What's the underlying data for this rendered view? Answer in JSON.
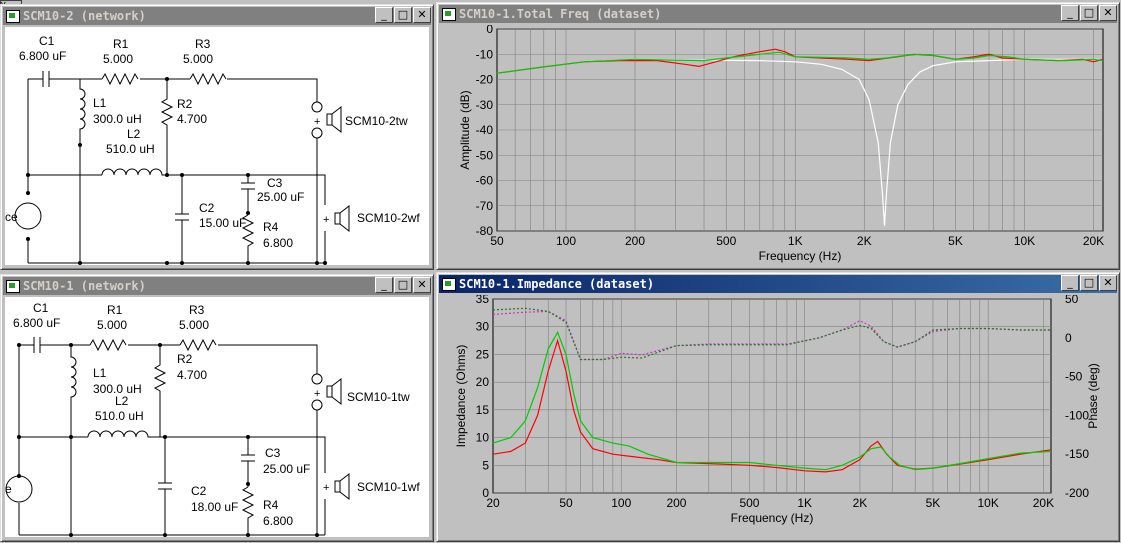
{
  "topleft": {
    "label": "y"
  },
  "windows": {
    "net2": {
      "title": "SCM10-2 (network)",
      "labels": {
        "c1": "C1",
        "c1v": "6.800 uF",
        "r1": "R1",
        "r1v": "5.000",
        "r3": "R3",
        "r3v": "5.000",
        "l1": "L1",
        "l1v": "300.0 uH",
        "r2": "R2",
        "r2v": "4.700",
        "l2": "L2",
        "l2v": "510.0 uH",
        "c2": "C2",
        "c2v": "15.00 uF",
        "c3": "C3",
        "c3v": "25.00 uF",
        "r4": "R4",
        "r4v": "6.800",
        "tw": "SCM10-2tw",
        "wf": "SCM10-2wf",
        "src": "ce"
      }
    },
    "net1": {
      "title": "SCM10-1 (network)",
      "labels": {
        "c1": "C1",
        "c1v": "6.800 uF",
        "r1": "R1",
        "r1v": "5.000",
        "r3": "R3",
        "r3v": "5.000",
        "l1": "L1",
        "l1v": "300.0 uH",
        "r2": "R2",
        "r2v": "4.700",
        "l2": "L2",
        "l2v": "510.0 uH",
        "c2": "C2",
        "c2v": "18.00 uF",
        "c3": "C3",
        "c3v": "25.00 uF",
        "r4": "R4",
        "r4v": "6.800",
        "tw": "SCM10-1tw",
        "wf": "SCM10-1wf",
        "src": "e"
      }
    },
    "freq": {
      "title": "SCM10-1.Total Freq (dataset)"
    },
    "imp": {
      "title": "SCM10-1.Impedance (dataset)"
    }
  },
  "buttons": {
    "min": "_",
    "max": "□",
    "close": "✕"
  },
  "colors": {
    "red": "#ff0000",
    "green": "#00cc00",
    "white": "#ffffff",
    "plot_bg": "#c0c0c0",
    "grid": "#808080",
    "magenta": "#cc33cc",
    "darkgreen": "#207a20"
  },
  "chart_data": [
    {
      "type": "line",
      "xlabel": "Frequency (Hz)",
      "ylabel": "Amplitude (dB)",
      "x_scale": "log",
      "xlim": [
        50,
        22000
      ],
      "ylim": [
        -80,
        0
      ],
      "grid": true,
      "x_ticks": [
        {
          "v": 50,
          "t": "50"
        },
        {
          "v": 100,
          "t": "100"
        },
        {
          "v": 200,
          "t": "200"
        },
        {
          "v": 500,
          "t": "500"
        },
        {
          "v": 1000,
          "t": "1K"
        },
        {
          "v": 2000,
          "t": "2K"
        },
        {
          "v": 5000,
          "t": "5K"
        },
        {
          "v": 10000,
          "t": "10K"
        },
        {
          "v": 20000,
          "t": "20K"
        }
      ],
      "y_ticks": [
        {
          "v": 0,
          "t": "0"
        },
        {
          "v": -10,
          "t": "-10"
        },
        {
          "v": -20,
          "t": "-20"
        },
        {
          "v": -30,
          "t": "-30"
        },
        {
          "v": -40,
          "t": "-40"
        },
        {
          "v": -50,
          "t": "-50"
        },
        {
          "v": -60,
          "t": "-60"
        },
        {
          "v": -70,
          "t": "-70"
        },
        {
          "v": -80,
          "t": "-80"
        }
      ],
      "series": [
        {
          "color": "white",
          "points": [
            [
              50,
              -17.5
            ],
            [
              80,
              -15
            ],
            [
              120,
              -13
            ],
            [
              200,
              -12
            ],
            [
              400,
              -12.3
            ],
            [
              700,
              -12.5
            ],
            [
              1000,
              -13
            ],
            [
              1300,
              -14
            ],
            [
              1600,
              -16
            ],
            [
              1900,
              -20
            ],
            [
              2100,
              -28
            ],
            [
              2300,
              -45
            ],
            [
              2400,
              -65
            ],
            [
              2450,
              -78
            ],
            [
              2500,
              -65
            ],
            [
              2600,
              -45
            ],
            [
              2800,
              -30
            ],
            [
              3100,
              -22
            ],
            [
              3500,
              -17
            ],
            [
              4000,
              -14.5
            ],
            [
              5000,
              -13
            ],
            [
              7000,
              -12.5
            ],
            [
              10000,
              -12
            ],
            [
              15000,
              -12
            ],
            [
              21000,
              -12
            ]
          ]
        },
        {
          "color": "red",
          "points": [
            [
              50,
              -17.5
            ],
            [
              80,
              -15
            ],
            [
              120,
              -13
            ],
            [
              170,
              -12.5
            ],
            [
              250,
              -12.5
            ],
            [
              330,
              -14
            ],
            [
              380,
              -14.8
            ],
            [
              450,
              -13
            ],
            [
              550,
              -10.8
            ],
            [
              700,
              -9
            ],
            [
              820,
              -8
            ],
            [
              900,
              -9
            ],
            [
              1000,
              -11
            ],
            [
              1300,
              -11.5
            ],
            [
              1700,
              -12
            ],
            [
              2100,
              -12.5
            ],
            [
              2400,
              -11.8
            ],
            [
              2800,
              -11
            ],
            [
              3300,
              -10
            ],
            [
              4000,
              -10.5
            ],
            [
              5000,
              -12
            ],
            [
              6000,
              -11
            ],
            [
              7000,
              -10
            ],
            [
              8000,
              -11.5
            ],
            [
              10000,
              -12
            ],
            [
              14000,
              -12.5
            ],
            [
              18000,
              -12
            ],
            [
              20000,
              -13
            ],
            [
              22000,
              -12
            ]
          ]
        },
        {
          "color": "green",
          "points": [
            [
              50,
              -17.5
            ],
            [
              80,
              -15
            ],
            [
              120,
              -13
            ],
            [
              200,
              -12
            ],
            [
              300,
              -12.3
            ],
            [
              400,
              -12.5
            ],
            [
              500,
              -11.5
            ],
            [
              700,
              -10
            ],
            [
              850,
              -9.2
            ],
            [
              1000,
              -11
            ],
            [
              1300,
              -11.2
            ],
            [
              1700,
              -11.5
            ],
            [
              2100,
              -12
            ],
            [
              2500,
              -11.5
            ],
            [
              3000,
              -10.5
            ],
            [
              3500,
              -10
            ],
            [
              4000,
              -10.5
            ],
            [
              5000,
              -12
            ],
            [
              6000,
              -11.5
            ],
            [
              7000,
              -10.5
            ],
            [
              8500,
              -11
            ],
            [
              10000,
              -12
            ],
            [
              15000,
              -12.5
            ],
            [
              20000,
              -12
            ],
            [
              22000,
              -12.5
            ]
          ]
        }
      ]
    },
    {
      "type": "line",
      "xlabel": "Frequency (Hz)",
      "ylabel": "Impedance (Ohms)",
      "y2label": "Phase (deg)",
      "x_scale": "log",
      "xlim": [
        20,
        22000
      ],
      "ylim": [
        0,
        35
      ],
      "y2lim": [
        -200,
        50
      ],
      "grid": true,
      "x_ticks": [
        {
          "v": 20,
          "t": "20"
        },
        {
          "v": 50,
          "t": "50"
        },
        {
          "v": 100,
          "t": "100"
        },
        {
          "v": 200,
          "t": "200"
        },
        {
          "v": 500,
          "t": "500"
        },
        {
          "v": 1000,
          "t": "1K"
        },
        {
          "v": 2000,
          "t": "2K"
        },
        {
          "v": 5000,
          "t": "5K"
        },
        {
          "v": 10000,
          "t": "10K"
        },
        {
          "v": 20000,
          "t": "20K"
        }
      ],
      "y_ticks": [
        {
          "v": 35,
          "t": "35"
        },
        {
          "v": 30,
          "t": "30"
        },
        {
          "v": 25,
          "t": "25"
        },
        {
          "v": 20,
          "t": "20"
        },
        {
          "v": 15,
          "t": "15"
        },
        {
          "v": 10,
          "t": "10"
        },
        {
          "v": 5,
          "t": "5"
        },
        {
          "v": 0,
          "t": "0"
        }
      ],
      "y2_ticks": [
        {
          "v": 50,
          "t": "50"
        },
        {
          "v": 0,
          "t": "0"
        },
        {
          "v": -50,
          "t": "-50"
        },
        {
          "v": -100,
          "t": "-100"
        },
        {
          "v": -150,
          "t": "-150"
        },
        {
          "v": -200,
          "t": "-200"
        }
      ],
      "series": [
        {
          "color": "red",
          "axis": "left",
          "points": [
            [
              20,
              7
            ],
            [
              25,
              7.5
            ],
            [
              30,
              9
            ],
            [
              35,
              14
            ],
            [
              40,
              22
            ],
            [
              45,
              27.5
            ],
            [
              50,
              22
            ],
            [
              55,
              15
            ],
            [
              60,
              11
            ],
            [
              70,
              8
            ],
            [
              90,
              7
            ],
            [
              120,
              6.5
            ],
            [
              160,
              6
            ],
            [
              200,
              5.5
            ],
            [
              300,
              5.3
            ],
            [
              500,
              5
            ],
            [
              700,
              4.6
            ],
            [
              1000,
              4
            ],
            [
              1300,
              3.8
            ],
            [
              1600,
              4.2
            ],
            [
              2000,
              6
            ],
            [
              2300,
              8.5
            ],
            [
              2500,
              9.3
            ],
            [
              2800,
              7
            ],
            [
              3200,
              5
            ],
            [
              4000,
              4.3
            ],
            [
              5000,
              4.5
            ],
            [
              7000,
              5.2
            ],
            [
              10000,
              6
            ],
            [
              15000,
              7
            ],
            [
              22000,
              7.8
            ]
          ]
        },
        {
          "color": "green",
          "axis": "left",
          "points": [
            [
              20,
              9
            ],
            [
              25,
              10
            ],
            [
              30,
              13
            ],
            [
              35,
              19
            ],
            [
              40,
              26
            ],
            [
              45,
              29
            ],
            [
              50,
              25
            ],
            [
              55,
              18
            ],
            [
              60,
              13
            ],
            [
              70,
              10
            ],
            [
              90,
              9
            ],
            [
              110,
              8.5
            ],
            [
              140,
              7
            ],
            [
              200,
              5.5
            ],
            [
              300,
              5.5
            ],
            [
              500,
              5.5
            ],
            [
              700,
              5
            ],
            [
              1000,
              4.5
            ],
            [
              1300,
              4.2
            ],
            [
              1600,
              5
            ],
            [
              2000,
              6.5
            ],
            [
              2300,
              8
            ],
            [
              2600,
              8.3
            ],
            [
              2900,
              6.5
            ],
            [
              3300,
              5
            ],
            [
              4000,
              4.2
            ],
            [
              5000,
              4.5
            ],
            [
              7000,
              5.3
            ],
            [
              10000,
              6.2
            ],
            [
              15000,
              7.2
            ],
            [
              22000,
              7.5
            ]
          ]
        },
        {
          "color": "magenta",
          "axis": "right",
          "dashed": true,
          "points": [
            [
              20,
              30
            ],
            [
              30,
              33
            ],
            [
              40,
              34
            ],
            [
              50,
              22
            ],
            [
              60,
              -28
            ],
            [
              80,
              -28
            ],
            [
              100,
              -20
            ],
            [
              130,
              -22
            ],
            [
              200,
              -10
            ],
            [
              300,
              -8
            ],
            [
              500,
              -8
            ],
            [
              800,
              -8
            ],
            [
              1200,
              0
            ],
            [
              1600,
              10
            ],
            [
              2000,
              22
            ],
            [
              2300,
              15
            ],
            [
              2700,
              -5
            ],
            [
              3200,
              -12
            ],
            [
              4000,
              -5
            ],
            [
              5000,
              8
            ],
            [
              7000,
              12
            ],
            [
              10000,
              12
            ],
            [
              15000,
              10
            ],
            [
              22000,
              10
            ]
          ]
        },
        {
          "color": "darkgreen",
          "axis": "right",
          "dashed": true,
          "points": [
            [
              20,
              36
            ],
            [
              30,
              38
            ],
            [
              40,
              34
            ],
            [
              50,
              20
            ],
            [
              60,
              -28
            ],
            [
              80,
              -28
            ],
            [
              100,
              -25
            ],
            [
              130,
              -26
            ],
            [
              200,
              -10
            ],
            [
              300,
              -9
            ],
            [
              500,
              -9
            ],
            [
              800,
              -9
            ],
            [
              1200,
              0
            ],
            [
              1600,
              10
            ],
            [
              2000,
              16
            ],
            [
              2300,
              12
            ],
            [
              2700,
              -5
            ],
            [
              3200,
              -12
            ],
            [
              4000,
              -5
            ],
            [
              5000,
              10
            ],
            [
              7000,
              12
            ],
            [
              10000,
              12
            ],
            [
              15000,
              10
            ],
            [
              22000,
              10
            ]
          ]
        }
      ]
    }
  ]
}
